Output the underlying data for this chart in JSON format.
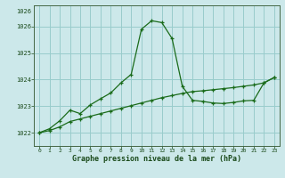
{
  "xlabel": "Graphe pression niveau de la mer (hPa)",
  "background_color": "#cce8ea",
  "grid_color": "#99cccc",
  "line_color": "#1a6b1a",
  "xlim": [
    -0.5,
    23.5
  ],
  "ylim": [
    1021.5,
    1026.8
  ],
  "yticks": [
    1022,
    1023,
    1024,
    1025,
    1026
  ],
  "xticks": [
    0,
    1,
    2,
    3,
    4,
    5,
    6,
    7,
    8,
    9,
    10,
    11,
    12,
    13,
    14,
    15,
    16,
    17,
    18,
    19,
    20,
    21,
    22,
    23
  ],
  "series1_x": [
    0,
    1,
    2,
    3,
    4,
    5,
    6,
    7,
    8,
    9,
    10,
    11,
    12,
    13,
    14,
    15,
    16,
    17,
    18,
    19,
    20,
    21,
    22,
    23
  ],
  "series1_y": [
    1022.0,
    1022.15,
    1022.45,
    1022.85,
    1022.72,
    1023.05,
    1023.28,
    1023.5,
    1023.88,
    1024.2,
    1025.9,
    1026.22,
    1026.15,
    1025.55,
    1023.75,
    1023.22,
    1023.18,
    1023.12,
    1023.1,
    1023.14,
    1023.2,
    1023.22,
    1023.88,
    1024.08
  ],
  "series2_x": [
    0,
    1,
    2,
    3,
    4,
    5,
    6,
    7,
    8,
    9,
    10,
    11,
    12,
    13,
    14,
    15,
    16,
    17,
    18,
    19,
    20,
    21,
    22,
    23
  ],
  "series2_y": [
    1022.0,
    1022.08,
    1022.22,
    1022.42,
    1022.52,
    1022.62,
    1022.72,
    1022.82,
    1022.92,
    1023.02,
    1023.12,
    1023.22,
    1023.32,
    1023.4,
    1023.48,
    1023.55,
    1023.58,
    1023.62,
    1023.66,
    1023.7,
    1023.75,
    1023.8,
    1023.88,
    1024.08
  ],
  "xlabel_color": "#1a4a1a",
  "tick_color": "#1a4a1a",
  "top_label": "1026"
}
